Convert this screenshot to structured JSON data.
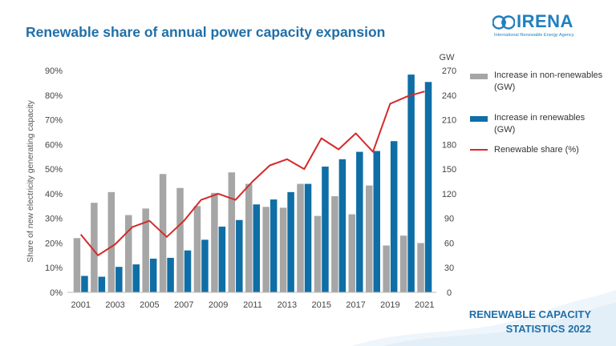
{
  "header": {
    "title": "Renewable share of annual power capacity expansion"
  },
  "logo": {
    "name": "IRENA",
    "subtitle": "International Renewable Energy Agency"
  },
  "footer": {
    "line1": "RENEWABLE CAPACITY",
    "line2": "STATISTICS 2022"
  },
  "colors": {
    "title": "#1f6fa8",
    "non_renewables": "#a6a6a6",
    "renewables": "#0f6ea6",
    "share_line": "#d42a2a"
  },
  "chart_data": {
    "type": "bar",
    "categories": [
      "2001",
      "2002",
      "2003",
      "2004",
      "2005",
      "2006",
      "2007",
      "2008",
      "2009",
      "2010",
      "2011",
      "2012",
      "2013",
      "2014",
      "2015",
      "2016",
      "2017",
      "2018",
      "2019",
      "2020",
      "2021"
    ],
    "x_tick_labels": [
      "2001",
      "2003",
      "2005",
      "2007",
      "2009",
      "2011",
      "2013",
      "2015",
      "2017",
      "2019",
      "2021"
    ],
    "series": [
      {
        "name": "Increase in non-renewables (GW)",
        "type": "bar",
        "axis": "right",
        "values": [
          66,
          109,
          122,
          94,
          102,
          144,
          127,
          105,
          121,
          146,
          132,
          104,
          103,
          132,
          93,
          117,
          95,
          130,
          57,
          69,
          60
        ]
      },
      {
        "name": "Increase in renewables (GW)",
        "type": "bar",
        "axis": "right",
        "values": [
          20,
          19,
          31,
          34,
          41,
          42,
          51,
          64,
          80,
          88,
          107,
          113,
          122,
          132,
          153,
          162,
          171,
          172,
          184,
          265,
          256
        ]
      },
      {
        "name": "Renewable share (%)",
        "type": "line",
        "axis": "left",
        "values": [
          23.5,
          15,
          19.5,
          26.5,
          29,
          22.5,
          29,
          37.5,
          40,
          37.5,
          45,
          51.5,
          54,
          50,
          62.5,
          58,
          64.5,
          57,
          76.5,
          79.5,
          81.5
        ]
      }
    ],
    "ylabel": "Share of new electricity generating capacity",
    "ylim": [
      0,
      90
    ],
    "y_ticks": [
      "0%",
      "10%",
      "20%",
      "30%",
      "40%",
      "50%",
      "60%",
      "70%",
      "80%",
      "90%"
    ],
    "y2label": "GW",
    "y2lim": [
      0,
      270
    ],
    "y2_ticks": [
      "0",
      "30",
      "60",
      "90",
      "120",
      "150",
      "180",
      "210",
      "240",
      "270"
    ],
    "grid": false,
    "legend_position": "right"
  }
}
